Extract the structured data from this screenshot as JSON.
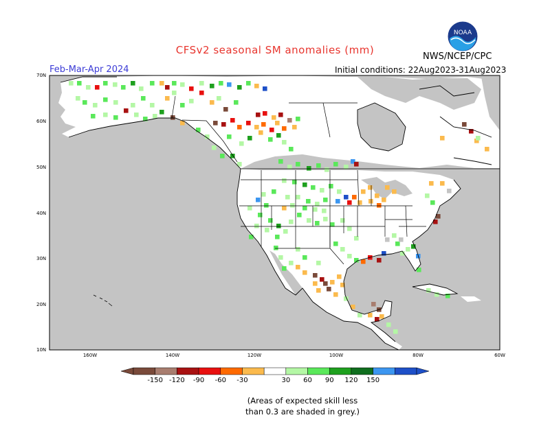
{
  "header": {
    "title": "CFSv2 seasonal SM anomalies (mm)",
    "agency": "NWS/NCEP/CPC",
    "period": "Feb-Mar-Apr 2024",
    "initial_conditions": "Initial conditions: 22Aug2023-31Aug2023"
  },
  "logo": {
    "icon": "noaa-logo",
    "text": "NOAA"
  },
  "map": {
    "lat_labels": [
      "70N",
      "60N",
      "50N",
      "40N",
      "30N",
      "20N",
      "10N"
    ],
    "lon_labels": [
      "160W",
      "140W",
      "120W",
      "100W",
      "80W",
      "60W"
    ],
    "colors": {
      "land": "#ffffff",
      "low_skill": "#c0c0c0",
      "ocean": "#c0c0c0"
    }
  },
  "colorbar": {
    "ticks": [
      "-150",
      "-120",
      "-90",
      "-60",
      "-30",
      "30",
      "60",
      "90",
      "120",
      "150"
    ],
    "colors": [
      "#7a4a3a",
      "#a87d6f",
      "#a81111",
      "#e8100f",
      "#ff6a00",
      "#fbba4d",
      "#ffffff",
      "#b4f7a5",
      "#5ae85a",
      "#1ea01e",
      "#0f6e1e",
      "#3c96f0",
      "#1e50c8"
    ]
  },
  "footnote": {
    "line1": "(Areas of expected skill less",
    "line2": "than 0.3 are shaded in grey.)"
  }
}
